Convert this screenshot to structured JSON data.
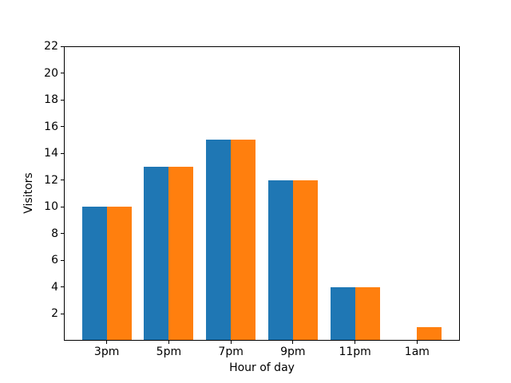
{
  "chart_data": {
    "type": "bar",
    "title": "",
    "xlabel": "Hour of day",
    "ylabel": "Visitors",
    "categories": [
      "3pm",
      "5pm",
      "7pm",
      "9pm",
      "11pm",
      "1am"
    ],
    "series": [
      {
        "name": "blue",
        "color": "#1f77b4",
        "values": [
          10,
          13,
          15,
          12,
          4,
          0
        ]
      },
      {
        "name": "orange",
        "color": "#ff7f0e",
        "values": [
          10,
          13,
          15,
          12,
          4,
          1
        ]
      }
    ],
    "yticks": [
      2,
      4,
      6,
      8,
      10,
      12,
      14,
      16,
      18,
      20,
      22
    ],
    "ylim": [
      0,
      22
    ],
    "xlim": [
      -0.69,
      5.69
    ],
    "bar_width": 0.4,
    "grid": false,
    "legend": "none",
    "background_color": "#ffffff",
    "axis_color": "#000000"
  }
}
